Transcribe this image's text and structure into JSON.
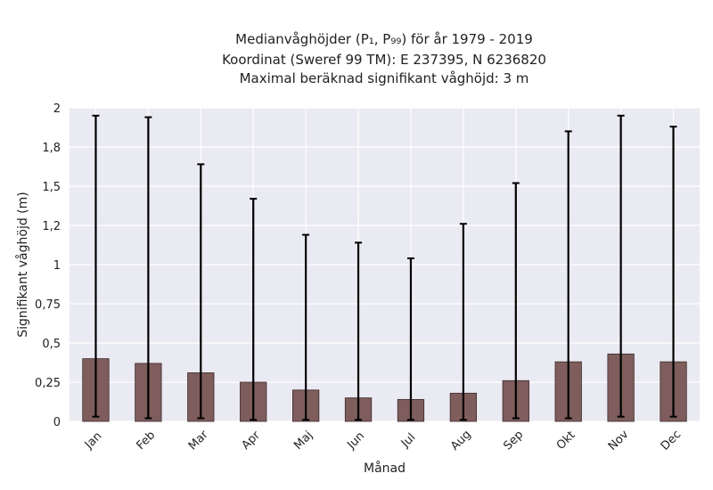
{
  "chart_data": {
    "type": "bar",
    "title_lines": [
      "Medianvåghöjder (P₁, P₉₉) för år 1979 - 2019",
      "Koordinat (Sweref 99 TM): E 237395, N 6236820",
      "Maximal beräknad signifikant våghöjd: 3 m"
    ],
    "xlabel": "Månad",
    "ylabel": "Signifikant våghöjd (m)",
    "categories": [
      "Jan",
      "Feb",
      "Mar",
      "Apr",
      "Maj",
      "Jun",
      "Jul",
      "Aug",
      "Sep",
      "Okt",
      "Nov",
      "Dec"
    ],
    "values": [
      0.4,
      0.37,
      0.31,
      0.25,
      0.2,
      0.15,
      0.14,
      0.18,
      0.26,
      0.38,
      0.43,
      0.38
    ],
    "error_low": [
      0.03,
      0.02,
      0.02,
      0.01,
      0.01,
      0.01,
      0.01,
      0.01,
      0.02,
      0.02,
      0.03,
      0.03
    ],
    "error_high": [
      1.95,
      1.94,
      1.64,
      1.42,
      1.19,
      1.14,
      1.04,
      1.26,
      1.52,
      1.85,
      1.95,
      1.88
    ],
    "ylim": [
      0,
      2
    ],
    "yticks": [
      0,
      0.25,
      0.5,
      0.75,
      1,
      1.25,
      1.5,
      1.75,
      2
    ],
    "ytick_labels": [
      "0",
      "0,25",
      "0,5",
      "0,75",
      "1",
      "1,2",
      "1,5",
      "1,8",
      "2"
    ],
    "grid": true,
    "colors": {
      "bar": "#7f5d5d",
      "bar_edge": "#3a2a2a",
      "error": "#000000",
      "background": "#eaeaf2",
      "grid": "#ffffff"
    }
  }
}
